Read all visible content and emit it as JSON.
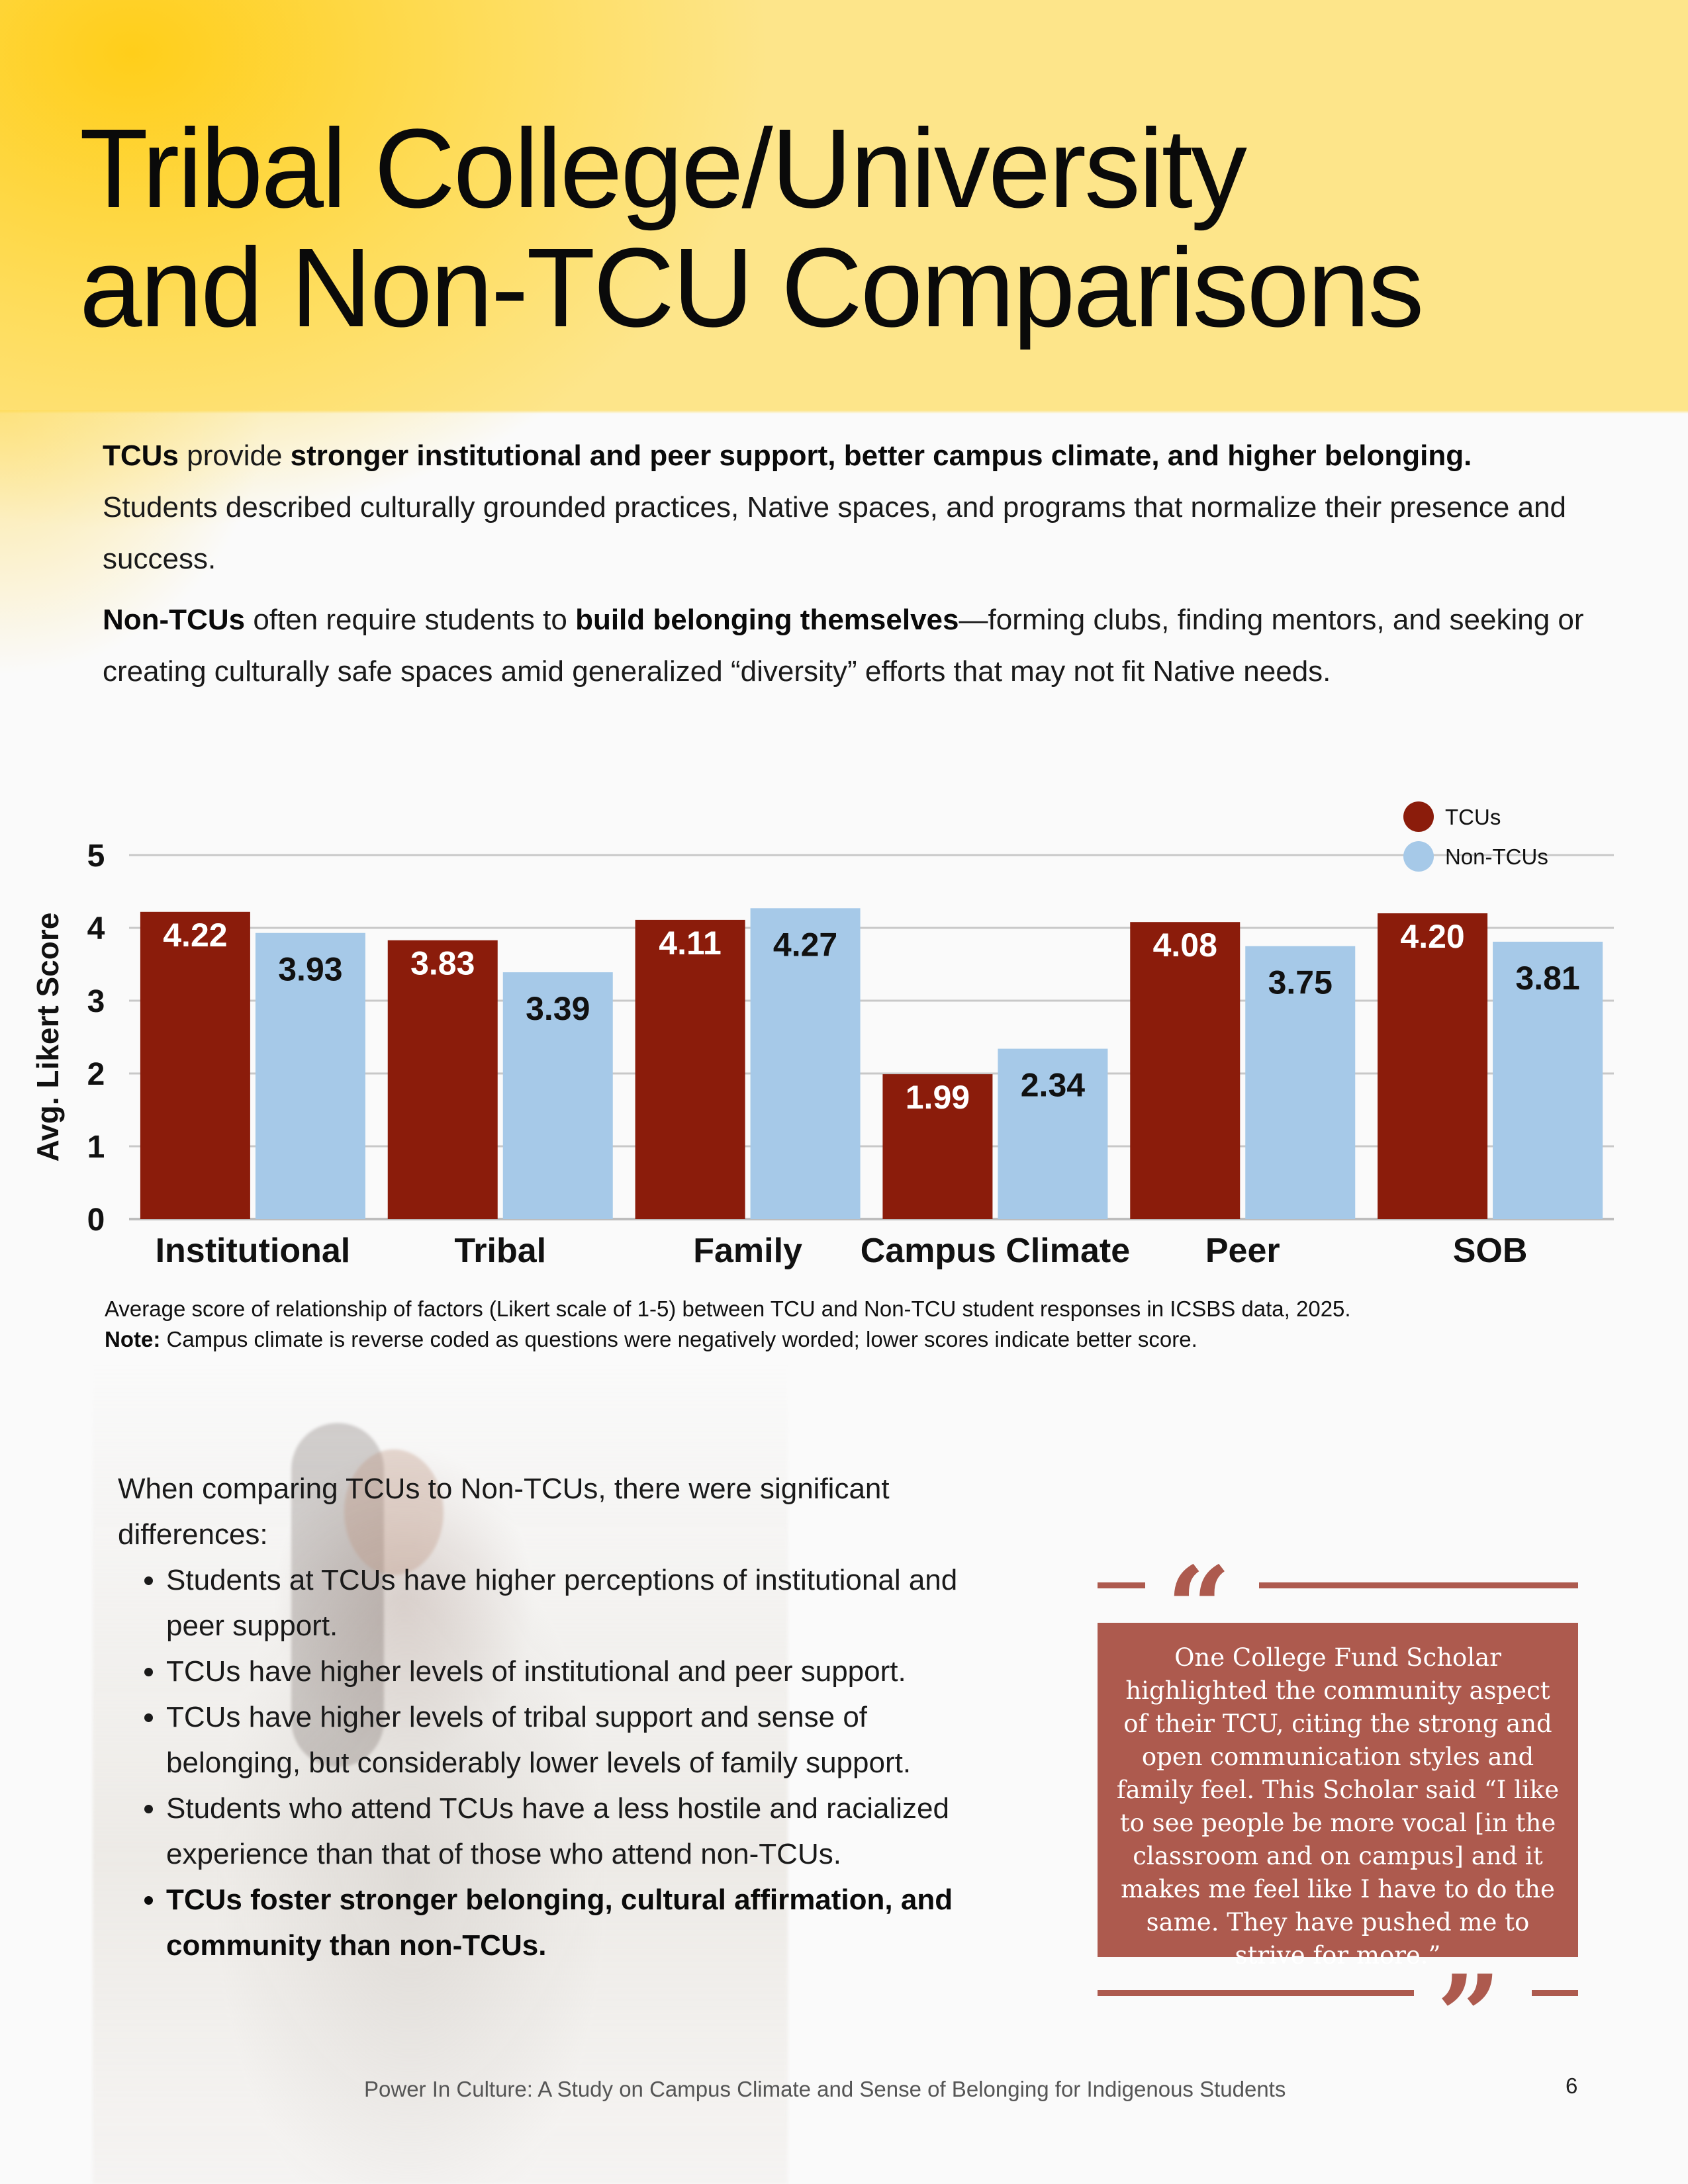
{
  "header": {
    "title_line1": "Tribal College/University",
    "title_line2": "and Non-TCU Comparisons"
  },
  "intro": {
    "p1_bold_lead": "TCUs",
    "p1_mid": " provide ",
    "p1_bold_claim": "stronger institutional and peer support, better campus climate, and higher belonging.",
    "p1_rest": " Students described culturally grounded practices, Native spaces, and programs that normalize their presence and success.",
    "p2_bold_lead": "Non-TCUs",
    "p2_mid": " often require students to ",
    "p2_bold_claim": "build belonging themselves",
    "p2_rest": "—forming clubs, finding mentors, and seeking or creating culturally safe spaces amid generalized “diversity” efforts that may not fit Native needs."
  },
  "chart_data": {
    "type": "bar",
    "title": "",
    "xlabel": "",
    "ylabel": "Avg. Likert Score",
    "ylim": [
      0,
      5
    ],
    "yticks": [
      0,
      1,
      2,
      3,
      4,
      5
    ],
    "grid": true,
    "legend_position": "top-right",
    "categories": [
      "Institutional",
      "Tribal",
      "Family",
      "Campus Climate",
      "Peer",
      "SOB"
    ],
    "series": [
      {
        "name": "TCUs",
        "color": "#8b1c0b",
        "values": [
          4.22,
          3.83,
          4.11,
          1.99,
          4.08,
          4.2
        ],
        "labels": [
          "4.22",
          "3.83",
          "4.11",
          "1.99",
          "4.08",
          "4.20"
        ]
      },
      {
        "name": "Non-TCUs",
        "color": "#a6c9e8",
        "values": [
          3.93,
          3.39,
          4.27,
          2.34,
          3.75,
          3.81
        ],
        "labels": [
          "3.93",
          "3.39",
          "4.27",
          "2.34",
          "3.75",
          "3.81"
        ]
      }
    ]
  },
  "caption": {
    "line1": "Average score of relationship of factors (Likert scale of 1-5) between TCU and Non-TCU student responses in ICSBS data, 2025.",
    "note_label": "Note:",
    "note_text": " Campus climate is reverse coded as questions were negatively worded; lower scores indicate better score."
  },
  "findings": {
    "lead": "When comparing TCUs to Non-TCUs, there were significant differences:",
    "bullets": [
      "Students at TCUs have higher perceptions of institutional and peer support.",
      "TCUs have higher levels of institutional and peer support.",
      "TCUs have higher levels of tribal support and sense of belonging, but considerably lower levels of family support.",
      "Students who attend TCUs have a less hostile and racialized experience than that of those who attend non-TCUs.",
      "TCUs foster stronger belonging, cultural affirmation, and community than non-TCUs."
    ]
  },
  "quote": {
    "open_mark": "“",
    "close_mark": "”",
    "text": "One College Fund Scholar highlighted the community aspect of their TCU, citing the strong and open communication styles and family feel. This Scholar said “I like to see people be more vocal [in the classroom and on campus] and it makes me feel like I have to do the same. They have pushed me to strive for more.”",
    "color": "#ad5a4e"
  },
  "footer": {
    "text": "Power In Culture: A Study on Campus Climate and Sense of Belonging for Indigenous Students",
    "page_number": "6"
  }
}
